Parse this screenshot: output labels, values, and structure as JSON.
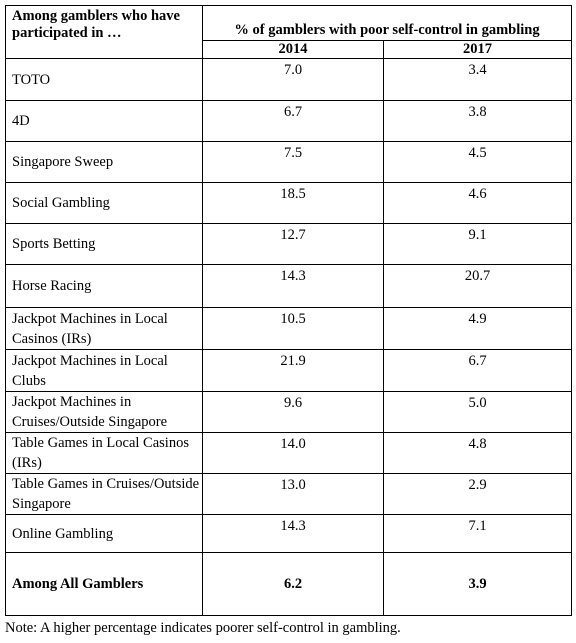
{
  "table": {
    "corner_header": "Among gamblers who have participated in …",
    "group_header": "% of gamblers with poor self-control in gambling",
    "years": [
      "2014",
      "2017"
    ],
    "rows": [
      {
        "label": "TOTO",
        "v2014": "7.0",
        "v2017": "3.4"
      },
      {
        "label": "4D",
        "v2014": "6.7",
        "v2017": "3.8"
      },
      {
        "label": "Singapore Sweep",
        "v2014": "7.5",
        "v2017": "4.5"
      },
      {
        "label": "Social Gambling",
        "v2014": "18.5",
        "v2017": "4.6"
      },
      {
        "label": "Sports Betting",
        "v2014": "12.7",
        "v2017": "9.1"
      },
      {
        "label": "Horse Racing",
        "v2014": "14.3",
        "v2017": "20.7"
      },
      {
        "label": "Jackpot Machines in Local Casinos (IRs)",
        "v2014": "10.5",
        "v2017": "4.9"
      },
      {
        "label": "Jackpot Machines in Local Clubs",
        "v2014": "21.9",
        "v2017": "6.7"
      },
      {
        "label": "Jackpot Machines in Cruises/Outside Singapore",
        "v2014": "9.6",
        "v2017": "5.0"
      },
      {
        "label": "Table Games in Local Casinos (IRs)",
        "v2014": "14.0",
        "v2017": "4.8"
      },
      {
        "label": "Table Games in Cruises/Outside Singapore",
        "v2014": "13.0",
        "v2017": "2.9"
      },
      {
        "label": "Online Gambling",
        "v2014": "14.3",
        "v2017": "7.1"
      }
    ],
    "total": {
      "label": "Among All Gamblers",
      "v2014": "6.2",
      "v2017": "3.9"
    }
  },
  "note": "Note: A higher percentage indicates poorer self-control in gambling."
}
